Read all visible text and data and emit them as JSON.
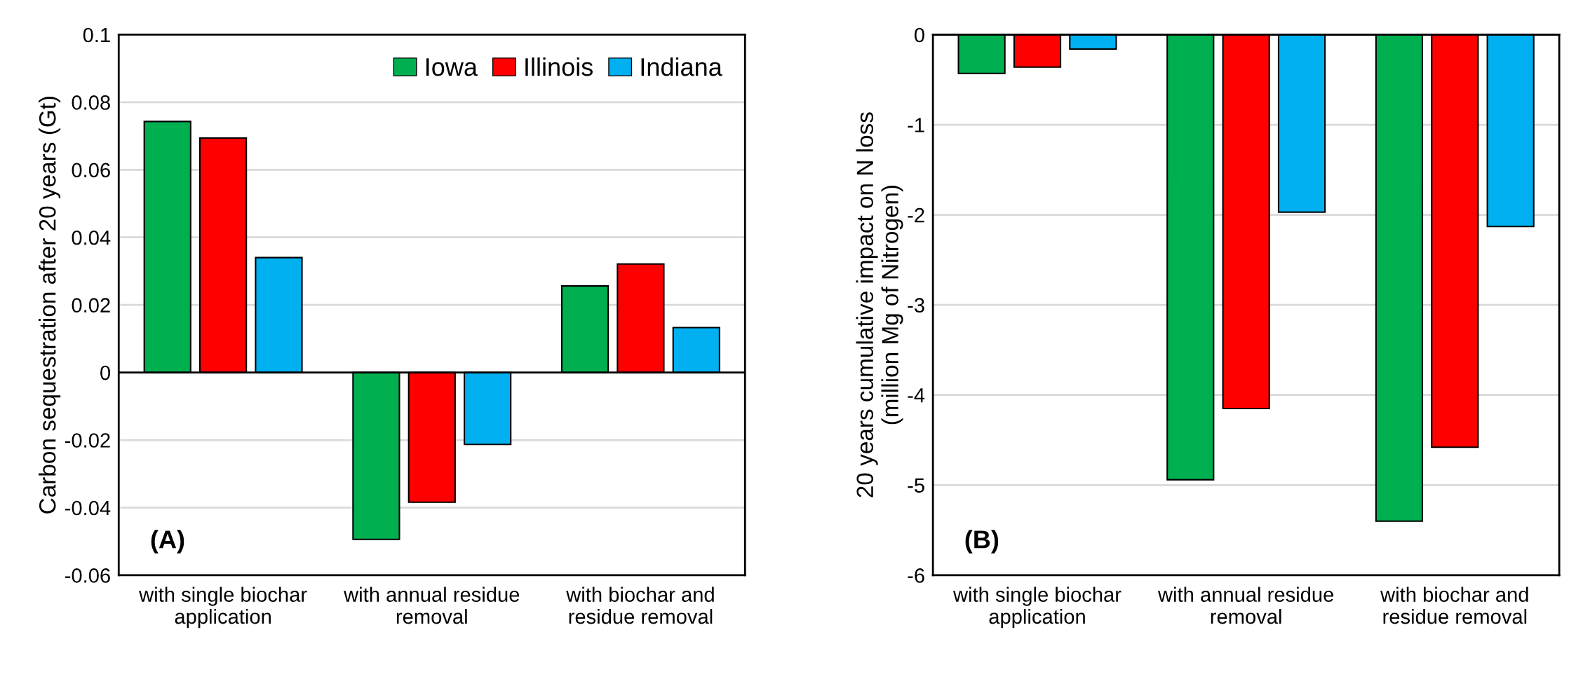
{
  "chart_data": [
    {
      "type": "bar",
      "ylabel": "Carbon sequestration after 20 years (Gt)",
      "categories": [
        "with single biochar application",
        "with annual residue removal",
        "with biochar and residue removal"
      ],
      "series": [
        {
          "name": "Iowa",
          "color": "#00b050",
          "values": [
            0.0743,
            -0.0494,
            0.0256
          ]
        },
        {
          "name": "Illinois",
          "color": "#ff0000",
          "values": [
            0.0694,
            -0.0384,
            0.0321
          ]
        },
        {
          "name": "Indiana",
          "color": "#00b0f0",
          "values": [
            0.034,
            -0.0213,
            0.0133
          ]
        }
      ],
      "ylim": [
        -0.06,
        0.1
      ],
      "yticks": [
        -0.06,
        -0.04,
        -0.02,
        0,
        0.02,
        0.04,
        0.06,
        0.08,
        0.1
      ],
      "grid": "y",
      "legend": "top right",
      "annotations": [
        "(A)"
      ]
    },
    {
      "type": "bar",
      "ylabel": "20 years cumulative impact on N loss\n(million Mg of Nitrogen)",
      "categories": [
        "with single biochar application",
        "with annual residue removal",
        "with biochar and residue removal"
      ],
      "series": [
        {
          "color": "#00b050",
          "values": [
            -0.43,
            -4.94,
            -5.4
          ]
        },
        {
          "color": "#ff0000",
          "values": [
            -0.36,
            -4.15,
            -4.58
          ]
        },
        {
          "color": "#00b0f0",
          "values": [
            -0.16,
            -1.97,
            -2.13
          ]
        }
      ],
      "ylim": [
        -6,
        0
      ],
      "yticks": [
        -6,
        -5,
        -4,
        -3,
        -2,
        -1,
        0
      ],
      "grid": "y",
      "annotations": [
        "(B)"
      ]
    }
  ]
}
